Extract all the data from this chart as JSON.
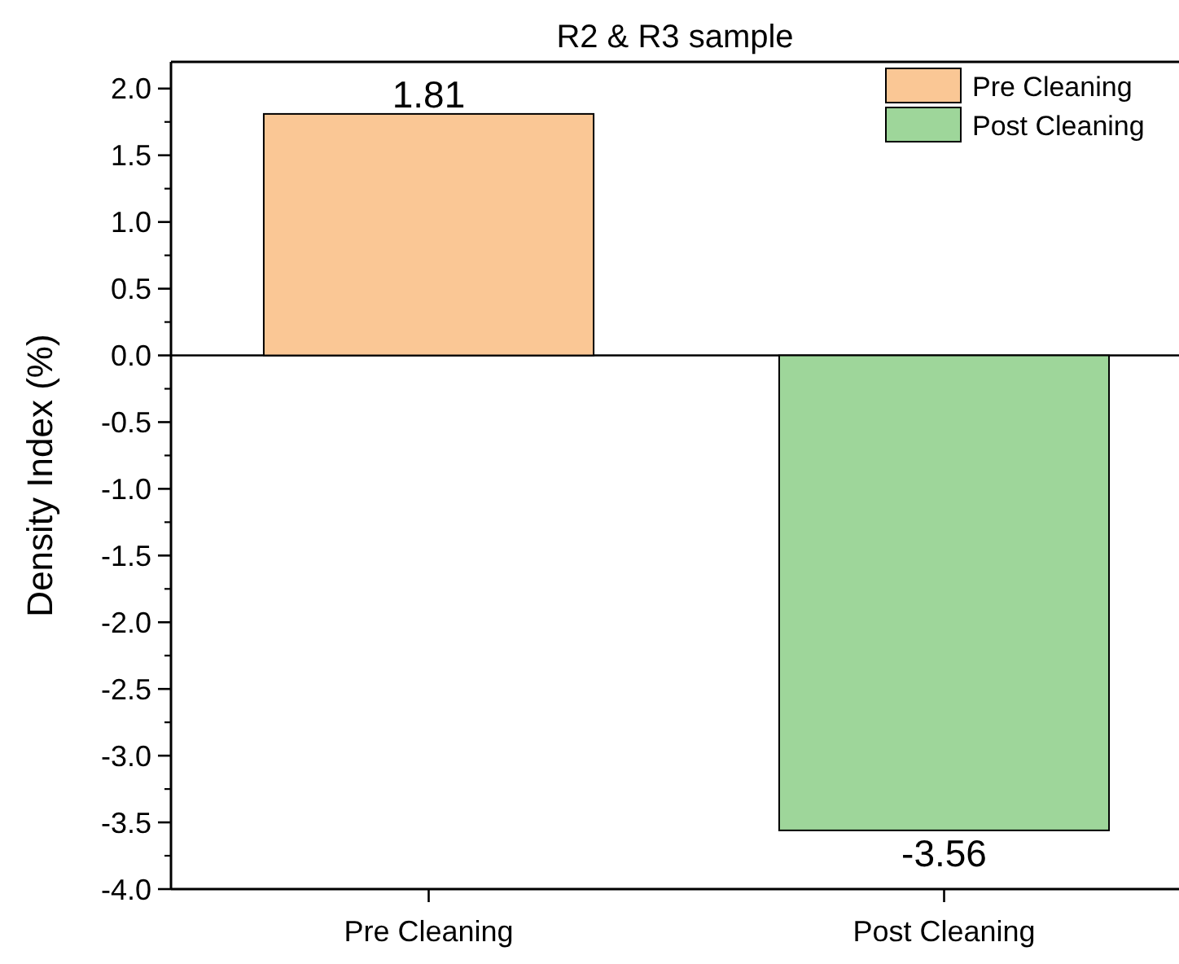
{
  "chart_data": {
    "type": "bar",
    "title": "R2 & R3 sample",
    "ylabel": "Density Index (%)",
    "categories": [
      "Pre Cleaning",
      "Post Cleaning"
    ],
    "series": [
      {
        "name": "Pre Cleaning",
        "color": "#fac795",
        "values": [
          1.81,
          null
        ]
      },
      {
        "name": "Post Cleaning",
        "color": "#9ed69a",
        "values": [
          null,
          -3.56
        ]
      }
    ],
    "ylim": [
      -4,
      2.2
    ],
    "yticks": [
      "-4.0",
      "-3.5",
      "-3.0",
      "-2.5",
      "-2.0",
      "-1.5",
      "-1.0",
      "-0.5",
      "0.0",
      "0.5",
      "1.0",
      "1.5",
      "2.0"
    ],
    "data_labels": true,
    "legend": "top right",
    "grid": false,
    "ref_lines": [
      {
        "axis": "y",
        "value": 0
      }
    ]
  }
}
